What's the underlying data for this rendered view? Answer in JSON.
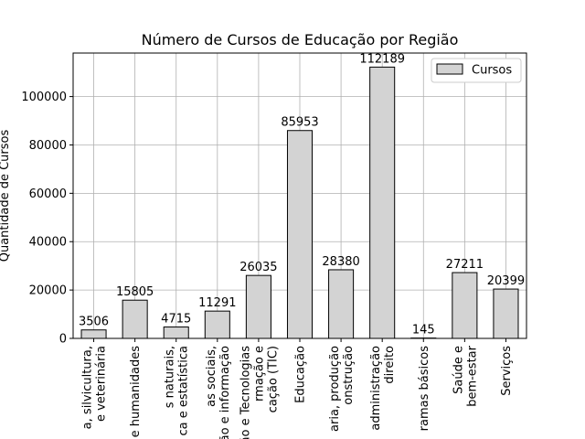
{
  "chart_data": {
    "type": "bar",
    "title": "Número de Cursos de Educação por Região",
    "xlabel": "",
    "ylabel": "Quantidade de Cursos",
    "ylim": [
      0,
      118000
    ],
    "yticks": [
      0,
      20000,
      40000,
      60000,
      80000,
      100000
    ],
    "grid": true,
    "legend": {
      "position": "top-right",
      "label": "Cursos"
    },
    "bar_color": "#d3d3d3",
    "edge_color": "#000000",
    "categories": [
      [
        "a, silvicultura,",
        "e veterinária"
      ],
      [
        "e humanidades"
      ],
      [
        "s naturais,",
        "ca e estatística"
      ],
      [
        "as sociais,",
        "ão e informação"
      ],
      [
        "ão e Tecnologias",
        "rmação e",
        "cação (TIC)"
      ],
      [
        "Educação"
      ],
      [
        "aria, produção",
        "onstrução"
      ],
      [
        "administração",
        "direito"
      ],
      [
        "ramas básicos"
      ],
      [
        "Saúde e",
        "bem-estar"
      ],
      [
        "Serviços"
      ]
    ],
    "values": [
      3506,
      15805,
      4715,
      11291,
      26035,
      85953,
      28380,
      112189,
      145,
      27211,
      20399
    ]
  }
}
